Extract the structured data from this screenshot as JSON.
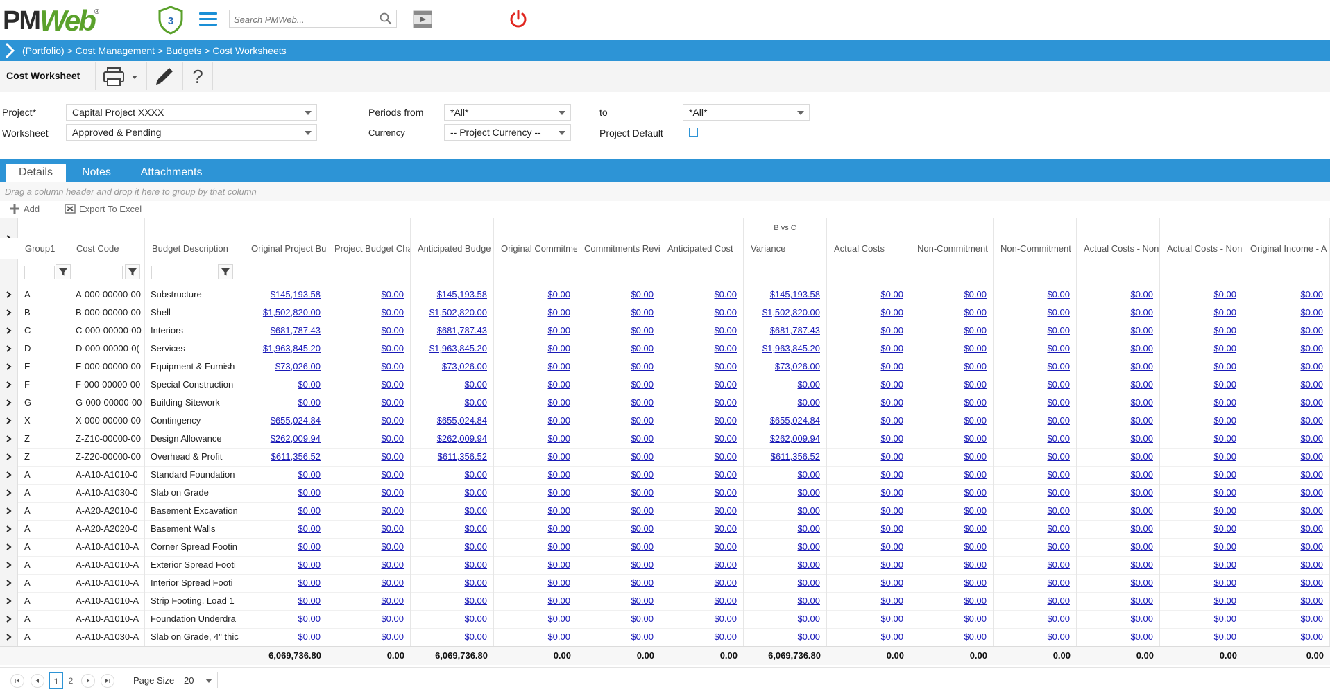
{
  "brand": {
    "logo_pm": "PM",
    "logo_web": "Web",
    "logo_reg": "®",
    "shield_count": "3"
  },
  "search": {
    "placeholder": "Search PMWeb..."
  },
  "icons": {
    "search": "search-icon",
    "video": "video-icon",
    "power": "power-icon",
    "menu": "hamburger-menu-icon"
  },
  "breadcrumb": {
    "portfolio": "(Portfolio)",
    "rest": " > Cost Management > Budgets > Cost Worksheets"
  },
  "toolbar": {
    "title": "Cost Worksheet"
  },
  "form": {
    "project_label": "Project*",
    "project_value": "Capital Project XXXX",
    "worksheet_label": "Worksheet",
    "worksheet_value": "Approved & Pending",
    "periods_from_label": "Periods from",
    "periods_from_value": "*All*",
    "to_label": "to",
    "to_value": "*All*",
    "currency_label": "Currency",
    "currency_value": "-- Project Currency --",
    "project_default_label": "Project Default",
    "project_default_checked": false
  },
  "tabs": [
    {
      "label": "Details",
      "active": true
    },
    {
      "label": "Notes",
      "active": false
    },
    {
      "label": "Attachments",
      "active": false
    }
  ],
  "grid": {
    "group_hint": "Drag a column header and drop it here to group by that column",
    "add_label": "Add",
    "export_label": "Export To Excel",
    "super_header": "B vs C",
    "columns": [
      "Group1",
      "Cost Code",
      "Budget Description",
      "Original Project Bu",
      "Project Budget Cha",
      "Anticipated Budge",
      "Original Commitme",
      "Commitments Revi",
      "Anticipated Cost",
      "Variance",
      "Actual Costs",
      "Non-Commitment",
      "Non-Commitment",
      "Actual Costs - Non",
      "Actual Costs - Non",
      "Original Income - A"
    ],
    "rows": [
      [
        "A",
        "A-000-00000-00",
        "Substructure",
        "$145,193.58",
        "$0.00",
        "$145,193.58",
        "$0.00",
        "$0.00",
        "$0.00",
        "$145,193.58",
        "$0.00",
        "$0.00",
        "$0.00",
        "$0.00",
        "$0.00",
        "$0.00"
      ],
      [
        "B",
        "B-000-00000-00",
        "Shell",
        "$1,502,820.00",
        "$0.00",
        "$1,502,820.00",
        "$0.00",
        "$0.00",
        "$0.00",
        "$1,502,820.00",
        "$0.00",
        "$0.00",
        "$0.00",
        "$0.00",
        "$0.00",
        "$0.00"
      ],
      [
        "C",
        "C-000-00000-00",
        "Interiors",
        "$681,787.43",
        "$0.00",
        "$681,787.43",
        "$0.00",
        "$0.00",
        "$0.00",
        "$681,787.43",
        "$0.00",
        "$0.00",
        "$0.00",
        "$0.00",
        "$0.00",
        "$0.00"
      ],
      [
        "D",
        "D-000-00000-0(",
        "Services",
        "$1,963,845.20",
        "$0.00",
        "$1,963,845.20",
        "$0.00",
        "$0.00",
        "$0.00",
        "$1,963,845.20",
        "$0.00",
        "$0.00",
        "$0.00",
        "$0.00",
        "$0.00",
        "$0.00"
      ],
      [
        "E",
        "E-000-00000-00",
        "Equipment & Furnish",
        "$73,026.00",
        "$0.00",
        "$73,026.00",
        "$0.00",
        "$0.00",
        "$0.00",
        "$73,026.00",
        "$0.00",
        "$0.00",
        "$0.00",
        "$0.00",
        "$0.00",
        "$0.00"
      ],
      [
        "F",
        "F-000-00000-00",
        "Special Construction",
        "$0.00",
        "$0.00",
        "$0.00",
        "$0.00",
        "$0.00",
        "$0.00",
        "$0.00",
        "$0.00",
        "$0.00",
        "$0.00",
        "$0.00",
        "$0.00",
        "$0.00"
      ],
      [
        "G",
        "G-000-00000-00",
        "Building Sitework",
        "$0.00",
        "$0.00",
        "$0.00",
        "$0.00",
        "$0.00",
        "$0.00",
        "$0.00",
        "$0.00",
        "$0.00",
        "$0.00",
        "$0.00",
        "$0.00",
        "$0.00"
      ],
      [
        "X",
        "X-000-00000-00",
        "Contingency",
        "$655,024.84",
        "$0.00",
        "$655,024.84",
        "$0.00",
        "$0.00",
        "$0.00",
        "$655,024.84",
        "$0.00",
        "$0.00",
        "$0.00",
        "$0.00",
        "$0.00",
        "$0.00"
      ],
      [
        "Z",
        "Z-Z10-00000-00",
        "Design Allowance",
        "$262,009.94",
        "$0.00",
        "$262,009.94",
        "$0.00",
        "$0.00",
        "$0.00",
        "$262,009.94",
        "$0.00",
        "$0.00",
        "$0.00",
        "$0.00",
        "$0.00",
        "$0.00"
      ],
      [
        "Z",
        "Z-Z20-00000-00",
        "Overhead & Profit",
        "$611,356.52",
        "$0.00",
        "$611,356.52",
        "$0.00",
        "$0.00",
        "$0.00",
        "$611,356.52",
        "$0.00",
        "$0.00",
        "$0.00",
        "$0.00",
        "$0.00",
        "$0.00"
      ],
      [
        "A",
        "A-A10-A1010-0",
        "Standard Foundation",
        "$0.00",
        "$0.00",
        "$0.00",
        "$0.00",
        "$0.00",
        "$0.00",
        "$0.00",
        "$0.00",
        "$0.00",
        "$0.00",
        "$0.00",
        "$0.00",
        "$0.00"
      ],
      [
        "A",
        "A-A10-A1030-0",
        "Slab on Grade",
        "$0.00",
        "$0.00",
        "$0.00",
        "$0.00",
        "$0.00",
        "$0.00",
        "$0.00",
        "$0.00",
        "$0.00",
        "$0.00",
        "$0.00",
        "$0.00",
        "$0.00"
      ],
      [
        "A",
        "A-A20-A2010-0",
        "Basement Excavation",
        "$0.00",
        "$0.00",
        "$0.00",
        "$0.00",
        "$0.00",
        "$0.00",
        "$0.00",
        "$0.00",
        "$0.00",
        "$0.00",
        "$0.00",
        "$0.00",
        "$0.00"
      ],
      [
        "A",
        "A-A20-A2020-0",
        "Basement Walls",
        "$0.00",
        "$0.00",
        "$0.00",
        "$0.00",
        "$0.00",
        "$0.00",
        "$0.00",
        "$0.00",
        "$0.00",
        "$0.00",
        "$0.00",
        "$0.00",
        "$0.00"
      ],
      [
        "A",
        "A-A10-A1010-A",
        "Corner Spread Footin",
        "$0.00",
        "$0.00",
        "$0.00",
        "$0.00",
        "$0.00",
        "$0.00",
        "$0.00",
        "$0.00",
        "$0.00",
        "$0.00",
        "$0.00",
        "$0.00",
        "$0.00"
      ],
      [
        "A",
        "A-A10-A1010-A",
        "Exterior Spread Footi",
        "$0.00",
        "$0.00",
        "$0.00",
        "$0.00",
        "$0.00",
        "$0.00",
        "$0.00",
        "$0.00",
        "$0.00",
        "$0.00",
        "$0.00",
        "$0.00",
        "$0.00"
      ],
      [
        "A",
        "A-A10-A1010-A",
        "Interior Spread Footi",
        "$0.00",
        "$0.00",
        "$0.00",
        "$0.00",
        "$0.00",
        "$0.00",
        "$0.00",
        "$0.00",
        "$0.00",
        "$0.00",
        "$0.00",
        "$0.00",
        "$0.00"
      ],
      [
        "A",
        "A-A10-A1010-A",
        "Strip Footing, Load 1",
        "$0.00",
        "$0.00",
        "$0.00",
        "$0.00",
        "$0.00",
        "$0.00",
        "$0.00",
        "$0.00",
        "$0.00",
        "$0.00",
        "$0.00",
        "$0.00",
        "$0.00"
      ],
      [
        "A",
        "A-A10-A1010-A",
        "Foundation Underdra",
        "$0.00",
        "$0.00",
        "$0.00",
        "$0.00",
        "$0.00",
        "$0.00",
        "$0.00",
        "$0.00",
        "$0.00",
        "$0.00",
        "$0.00",
        "$0.00",
        "$0.00"
      ],
      [
        "A",
        "A-A10-A1030-A",
        "Slab on Grade, 4\" thic",
        "$0.00",
        "$0.00",
        "$0.00",
        "$0.00",
        "$0.00",
        "$0.00",
        "$0.00",
        "$0.00",
        "$0.00",
        "$0.00",
        "$0.00",
        "$0.00",
        "$0.00"
      ]
    ],
    "totals": [
      "6,069,736.80",
      "0.00",
      "6,069,736.80",
      "0.00",
      "0.00",
      "0.00",
      "6,069,736.80",
      "0.00",
      "0.00",
      "0.00",
      "0.00",
      "0.00",
      "0.00"
    ]
  },
  "pager": {
    "pages": [
      "1",
      "2"
    ],
    "current": "1",
    "page_size_label": "Page Size",
    "page_size": "20"
  },
  "colors": {
    "accent": "#2d94d6",
    "link": "#1a1ab8",
    "power": "#e0261f",
    "brand_green": "#5aa12b"
  }
}
